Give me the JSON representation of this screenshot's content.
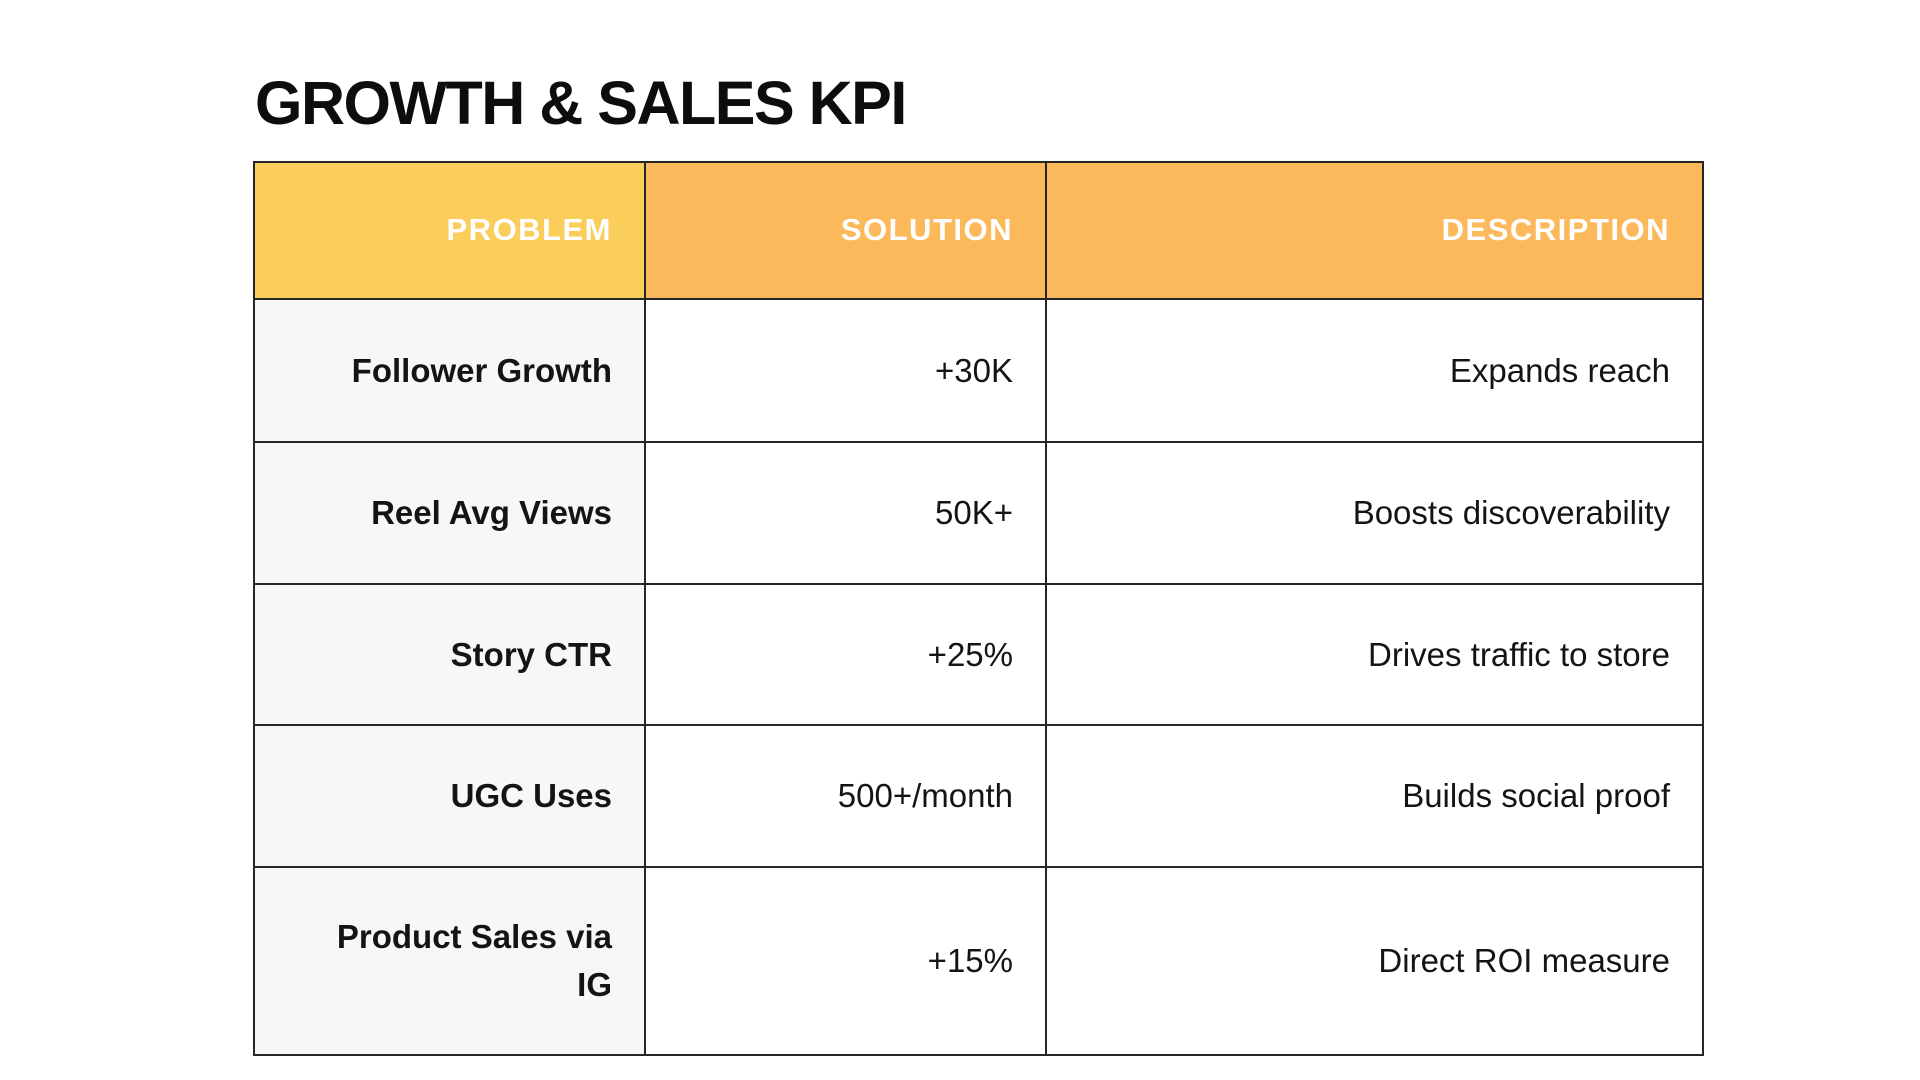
{
  "page": {
    "title": "GROWTH & SALES KPI"
  },
  "table": {
    "columns": [
      {
        "label": "PROBLEM"
      },
      {
        "label": "SOLUTION"
      },
      {
        "label": "DESCRIPTION"
      }
    ],
    "rows": [
      {
        "problem": "Follower Growth",
        "solution": "+30K",
        "description": "Expands reach"
      },
      {
        "problem": "Reel Avg Views",
        "solution": "50K+",
        "description": "Boosts discoverability"
      },
      {
        "problem": "Story CTR",
        "solution": "+25%",
        "description": "Drives traffic to store"
      },
      {
        "problem": "UGC Uses",
        "solution": "500+/month",
        "description": "Builds social proof"
      },
      {
        "problem": "Product Sales via IG",
        "solution": "+15%",
        "description": "Direct ROI measure"
      }
    ]
  },
  "colors": {
    "header_problem_bg": "#FBCE5C",
    "header_solution_bg": "#FBB95B",
    "header_description_bg": "#FBB95B",
    "row_label_bg": "#F7F7F7",
    "cell_bg": "#FFFFFF",
    "border": "#262626",
    "header_text": "#FFFFFF",
    "body_text": "#141414",
    "title_text": "#0D0D0D"
  },
  "chart_data": {
    "type": "table",
    "title": "GROWTH & SALES KPI",
    "columns": [
      "PROBLEM",
      "SOLUTION",
      "DESCRIPTION"
    ],
    "rows": [
      [
        "Follower Growth",
        "+30K",
        "Expands reach"
      ],
      [
        "Reel Avg Views",
        "50K+",
        "Boosts discoverability"
      ],
      [
        "Story CTR",
        "+25%",
        "Drives traffic to store"
      ],
      [
        "UGC Uses",
        "500+/month",
        "Builds social proof"
      ],
      [
        "Product Sales via IG",
        "+15%",
        "Direct ROI measure"
      ]
    ]
  }
}
